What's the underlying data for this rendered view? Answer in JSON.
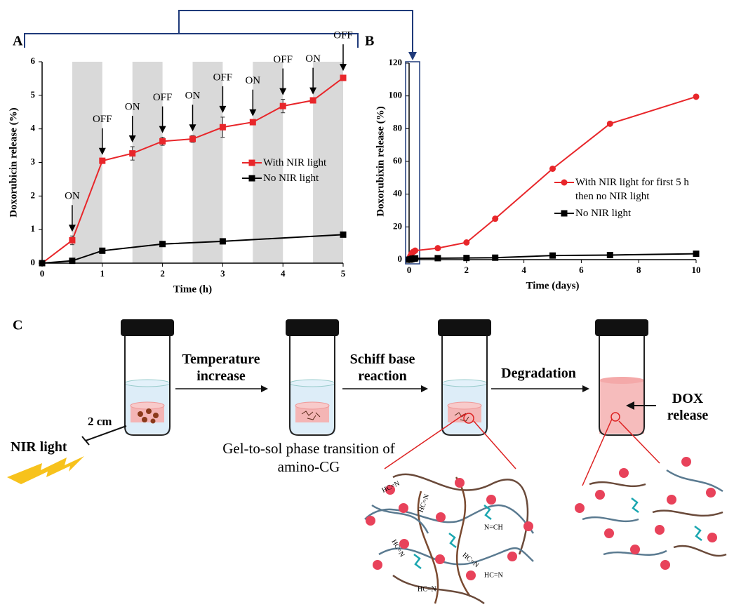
{
  "panel_labels": [
    "A",
    "B",
    "C"
  ],
  "chart_data": [
    {
      "type": "line",
      "x_label": "Time (h)",
      "y_label": "Doxorubicin release (%)",
      "xlim": [
        0,
        5
      ],
      "xticks": [
        0,
        1,
        2,
        3,
        4,
        5
      ],
      "ylim": [
        0,
        6
      ],
      "yticks": [
        0,
        1,
        2,
        3,
        4,
        5,
        6
      ],
      "shaded": [
        [
          0.5,
          1
        ],
        [
          1.5,
          2
        ],
        [
          2.5,
          3
        ],
        [
          3.5,
          4
        ],
        [
          4.5,
          5
        ]
      ],
      "shade_color": "#d9d9d9",
      "legend": "center-right",
      "annotations": [
        {
          "x": 0.5,
          "text": "ON"
        },
        {
          "x": 1,
          "text": "OFF"
        },
        {
          "x": 1.5,
          "text": "ON"
        },
        {
          "x": 2,
          "text": "OFF"
        },
        {
          "x": 2.5,
          "text": "ON"
        },
        {
          "x": 3,
          "text": "OFF"
        },
        {
          "x": 3.5,
          "text": "ON"
        },
        {
          "x": 4,
          "text": "OFF"
        },
        {
          "x": 4.5,
          "text": "ON"
        },
        {
          "x": 5,
          "text": "OFF"
        }
      ],
      "series": [
        {
          "name": "With NIR light",
          "color": "#e8262a",
          "marker": "square",
          "x": [
            0,
            0.5,
            1,
            1.5,
            2,
            2.5,
            3,
            3.5,
            4,
            4.5,
            5
          ],
          "values": [
            0,
            0.68,
            3.05,
            3.27,
            3.63,
            3.7,
            4.05,
            4.2,
            4.68,
            4.85,
            5.52
          ],
          "errors": [
            0,
            0.13,
            0.05,
            0.2,
            0.12,
            0.1,
            0.3,
            0.05,
            0.2,
            0.05,
            0.08
          ]
        },
        {
          "name": "No NIR light",
          "color": "#000000",
          "marker": "square",
          "x": [
            0,
            0.5,
            1,
            2,
            3,
            5
          ],
          "values": [
            0,
            0.07,
            0.37,
            0.57,
            0.65,
            0.85
          ]
        }
      ]
    },
    {
      "type": "line",
      "x_label": "Time (days)",
      "y_label": "Doxorubixin release (%)",
      "xlim": [
        0,
        10
      ],
      "xticks": [
        0,
        2,
        4,
        6,
        8,
        10
      ],
      "ylim": [
        0,
        120
      ],
      "yticks": [
        0,
        20,
        40,
        60,
        80,
        100,
        120
      ],
      "legend": "center-right",
      "series": [
        {
          "name": "With NIR light for first 5 h then no NIR light",
          "color": "#e8262a",
          "marker": "circle",
          "x": [
            0,
            0.04,
            0.08,
            0.12,
            0.17,
            0.21,
            1,
            2,
            3,
            5,
            7,
            10
          ],
          "values": [
            0,
            2,
            3.5,
            4.5,
            5,
            5.5,
            7,
            10.5,
            25,
            55.5,
            83,
            99.5
          ]
        },
        {
          "name": "No NIR light",
          "color": "#000000",
          "marker": "square",
          "x": [
            0,
            0.04,
            0.08,
            0.12,
            0.17,
            0.21,
            1,
            2,
            3,
            5,
            7,
            10
          ],
          "values": [
            0,
            0.1,
            0.3,
            0.6,
            0.65,
            0.8,
            0.9,
            1,
            1.2,
            2.5,
            2.8,
            3.6
          ]
        }
      ]
    }
  ],
  "diagram": {
    "steps": [
      "Temperature increase",
      "Schiff base reaction",
      "Degradation"
    ],
    "light": "NIR light",
    "distance": "2 cm",
    "transition": "Gel-to-sol phase transition of amino-CG",
    "release": "DOX release",
    "bond_labels": [
      "HC=N",
      "N=CH",
      "HC=N",
      "HC=N",
      "HC=N",
      "HC=N",
      "HC=N"
    ]
  }
}
